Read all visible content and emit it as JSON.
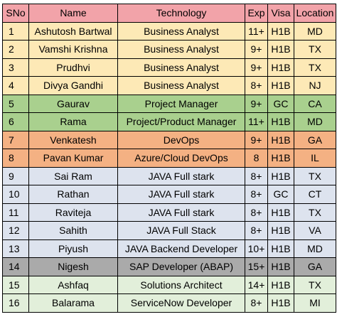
{
  "colors": {
    "header": "#f2a3a9",
    "business_analyst": "#fde9b6",
    "project_manager": "#a9d08e",
    "devops": "#f4b183",
    "java": "#dde3ee",
    "sap": "#aaaaaa",
    "architect_servicenow": "#e2efda"
  },
  "table": {
    "headers": [
      "SNo",
      "Name",
      "Technology",
      "Exp",
      "Visa",
      "Location"
    ],
    "rows": [
      {
        "sno": "1",
        "name": "Ashutosh Bartwal",
        "technology": "Business Analyst",
        "exp": "11+",
        "visa": "H1B",
        "location": "MD",
        "color": "#fde9b6"
      },
      {
        "sno": "2",
        "name": "Vamshi Krishna",
        "technology": "Business Analyst",
        "exp": "9+",
        "visa": "H1B",
        "location": "TX",
        "color": "#fde9b6"
      },
      {
        "sno": "3",
        "name": "Prudhvi",
        "technology": "Business Analyst",
        "exp": "9+",
        "visa": "H1B",
        "location": "TX",
        "color": "#fde9b6"
      },
      {
        "sno": "4",
        "name": "Divya Gandhi",
        "technology": "Business Analyst",
        "exp": "8+",
        "visa": "H1B",
        "location": "NJ",
        "color": "#fde9b6"
      },
      {
        "sno": "5",
        "name": "Gaurav",
        "technology": "Project Manager",
        "exp": "9+",
        "visa": "GC",
        "location": "CA",
        "color": "#a9d08e"
      },
      {
        "sno": "6",
        "name": "Rama",
        "technology": "Project/Product Manager",
        "exp": "11+",
        "visa": "H1B",
        "location": "MD",
        "color": "#a9d08e"
      },
      {
        "sno": "7",
        "name": "Venkatesh",
        "technology": "DevOps",
        "exp": "9+",
        "visa": "H1B",
        "location": "GA",
        "color": "#f4b183"
      },
      {
        "sno": "8",
        "name": "Pavan Kumar",
        "technology": "Azure/Cloud DevOps",
        "exp": "8",
        "visa": "H1B",
        "location": "IL",
        "color": "#f4b183"
      },
      {
        "sno": "9",
        "name": "Sai Ram",
        "technology": "JAVA Full stark",
        "exp": "8+",
        "visa": "H1B",
        "location": "TX",
        "color": "#dde3ee"
      },
      {
        "sno": "10",
        "name": "Rathan",
        "technology": "JAVA Full stark",
        "exp": "8+",
        "visa": "GC",
        "location": "CT",
        "color": "#dde3ee"
      },
      {
        "sno": "11",
        "name": "Raviteja",
        "technology": "JAVA Full stark",
        "exp": "8+",
        "visa": "H1B",
        "location": "TX",
        "color": "#dde3ee"
      },
      {
        "sno": "12",
        "name": "Sahith",
        "technology": "JAVA Full Stack",
        "exp": "8+",
        "visa": "H1B",
        "location": "VA",
        "color": "#dde3ee"
      },
      {
        "sno": "13",
        "name": "Piyush",
        "technology": "JAVA Backend Developer",
        "exp": "10+",
        "visa": "H1B",
        "location": "MD",
        "color": "#dde3ee"
      },
      {
        "sno": "14",
        "name": "Nigesh",
        "technology": "SAP Developer (ABAP)",
        "exp": "15+",
        "visa": "H1B",
        "location": "GA",
        "color": "#aaaaaa"
      },
      {
        "sno": "15",
        "name": "Ashfaq",
        "technology": "Solutions Architect",
        "exp": "14+",
        "visa": "H1B",
        "location": "TX",
        "color": "#e2efda"
      },
      {
        "sno": "16",
        "name": "Balarama",
        "technology": "ServiceNow Developer",
        "exp": "8+",
        "visa": "H1B",
        "location": "MI",
        "color": "#e2efda"
      }
    ]
  }
}
